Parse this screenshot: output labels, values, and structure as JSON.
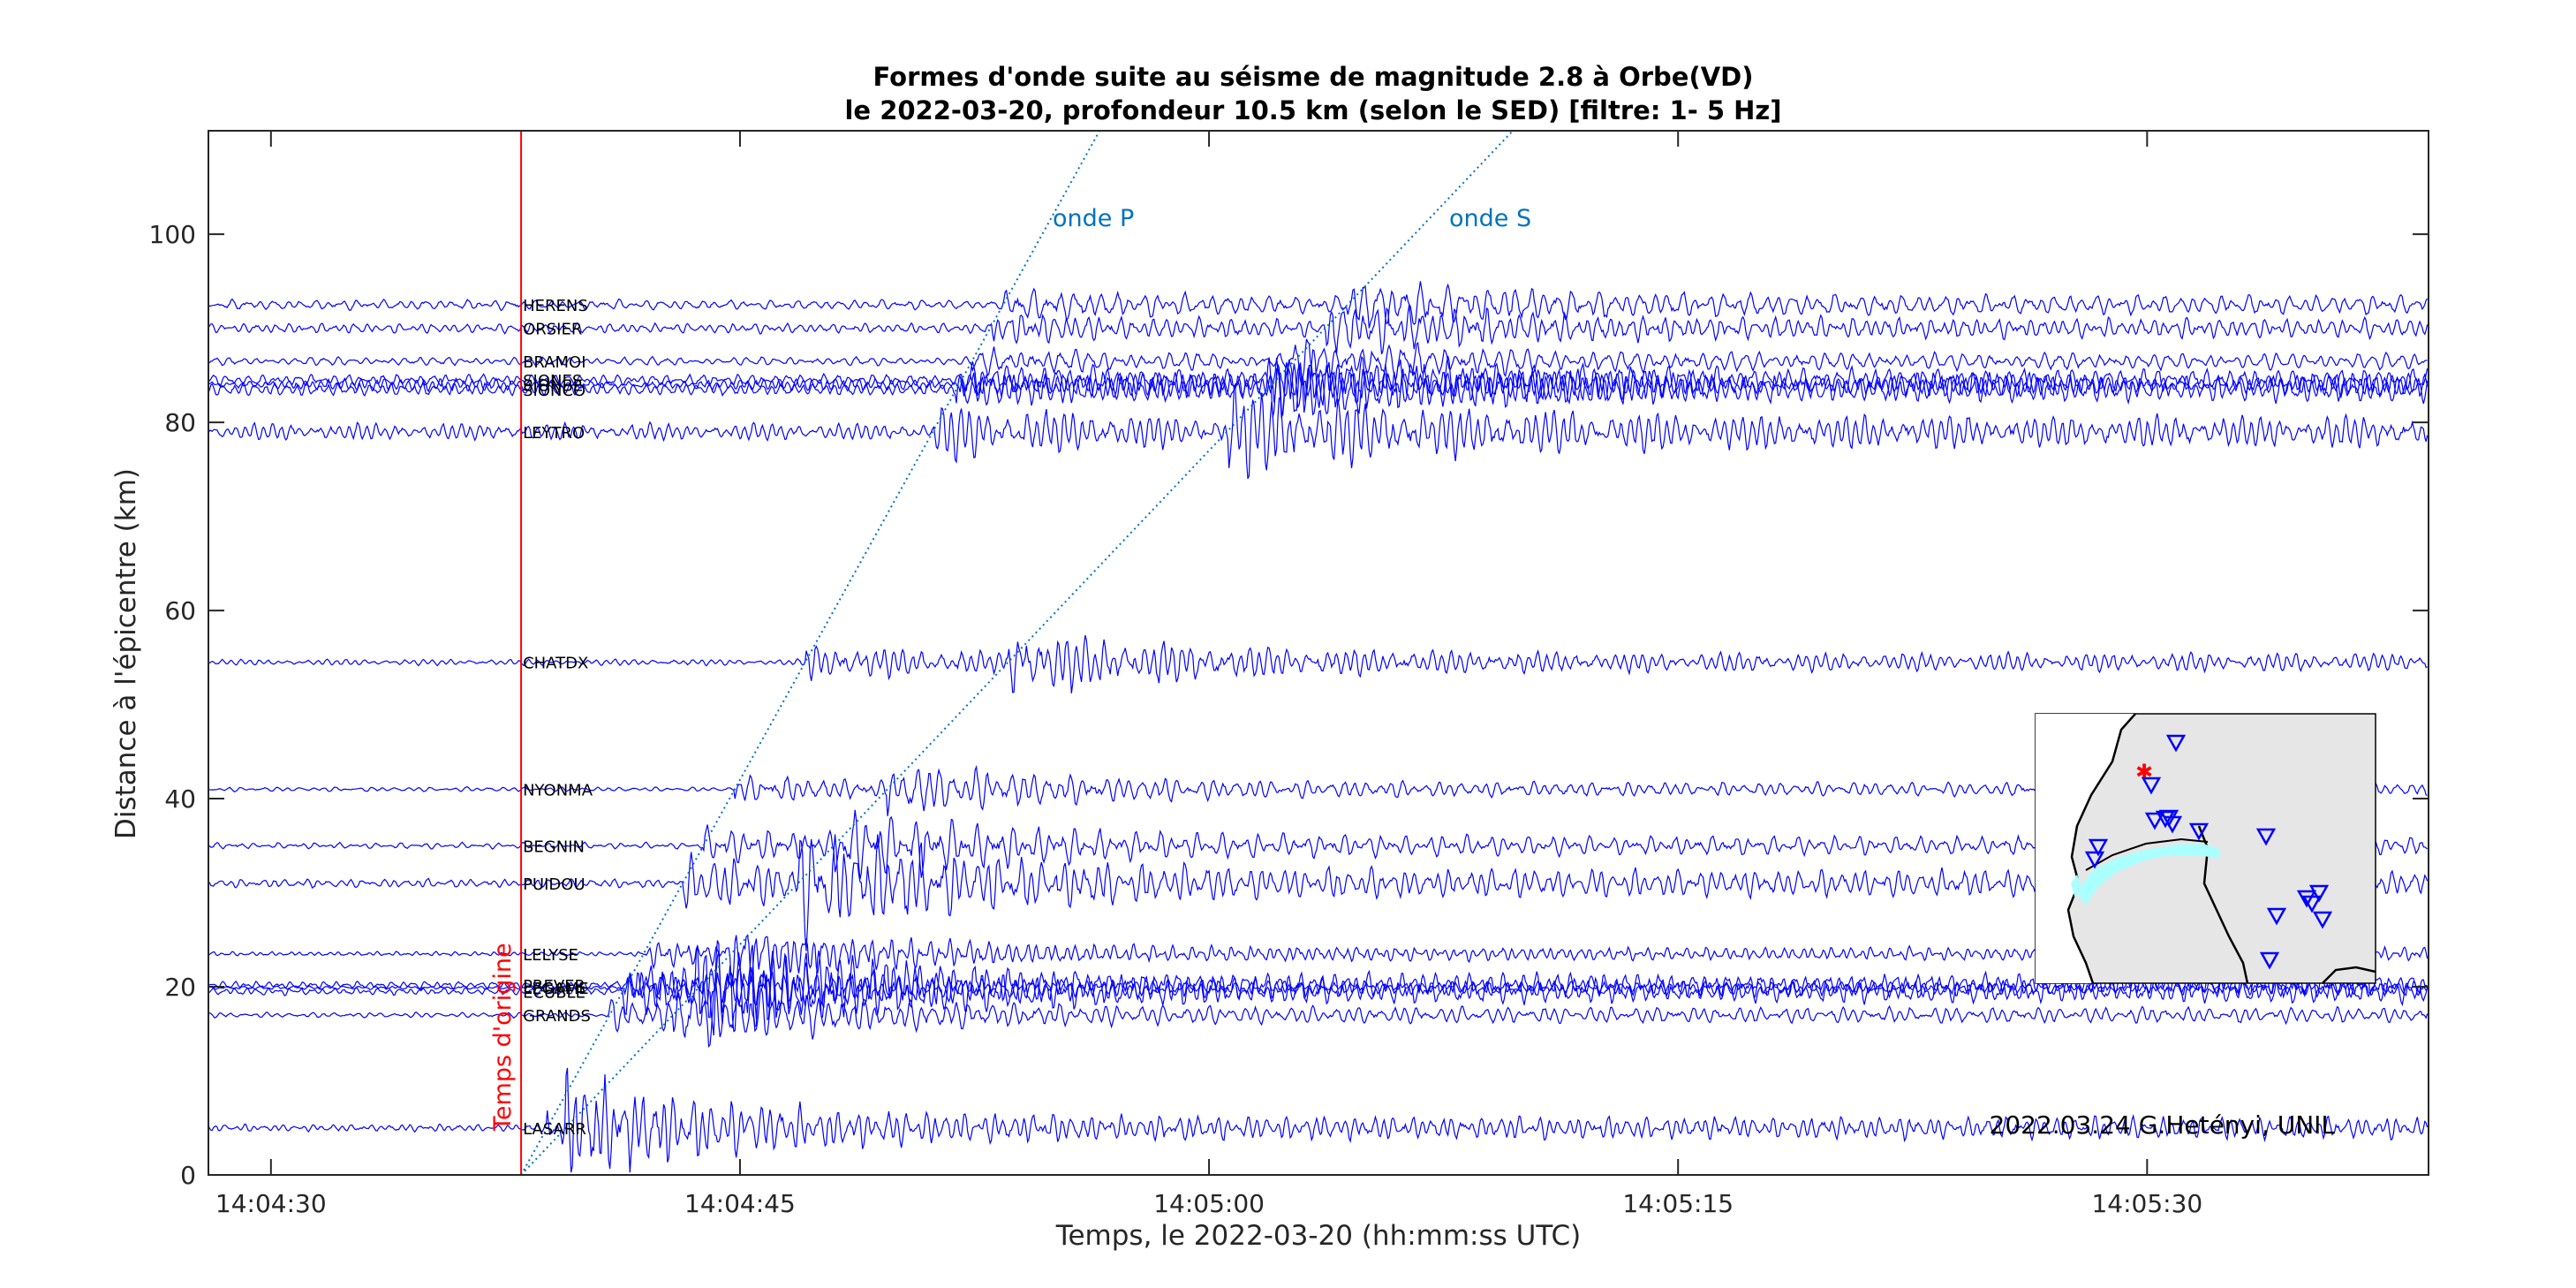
{
  "figure": {
    "title_line1": "Formes d'onde suite au séisme de magnitude 2.8 à Orbe(VD)",
    "title_line2": "le 2022-03-20, profondeur 10.5 km (selon le SED) [filtre: 1- 5 Hz]",
    "credit": "2022.03.24 G.Hetényi, UNIL",
    "origin_label": "Temps d'origine",
    "p_label": "onde P",
    "s_label": "onde S"
  },
  "chart_data": {
    "type": "line",
    "xlabel": "Temps, le 2022-03-20 (hh:mm:ss UTC)",
    "ylabel": "Distance à l'épicentre (km)",
    "xlim_seconds_after_14_04_00": [
      28,
      99
    ],
    "ylim": [
      0,
      111
    ],
    "x_ticks": [
      {
        "label": "14:04:30",
        "t": 30
      },
      {
        "label": "14:04:45",
        "t": 45
      },
      {
        "label": "14:05:00",
        "t": 60
      },
      {
        "label": "14:05:15",
        "t": 75
      },
      {
        "label": "14:05:30",
        "t": 90
      }
    ],
    "y_ticks": [
      0,
      20,
      40,
      60,
      80,
      100
    ],
    "origin_time": "14:04:38",
    "origin_time_seconds": 38,
    "p_velocity_km_s": 6.0,
    "s_velocity_km_s": 3.5,
    "wave_color": "#0000ff",
    "phase_line_color": "#0072BD",
    "origin_color": "#ff0000",
    "stations": [
      {
        "name": "HERENS",
        "distance": 92.5,
        "amp": 3.0
      },
      {
        "name": "ORSIER",
        "distance": 90.0,
        "amp": 3.0
      },
      {
        "name": "BRAMOI",
        "distance": 86.5,
        "amp": 2.5
      },
      {
        "name": "SIONES",
        "distance": 84.5,
        "amp": 3.5
      },
      {
        "name": "SIONBE",
        "distance": 84.0,
        "amp": 3.5
      },
      {
        "name": "SIONCO",
        "distance": 83.5,
        "amp": 4.0
      },
      {
        "name": "LEYTRO",
        "distance": 79.0,
        "amp": 5.0
      },
      {
        "name": "CHATDX",
        "distance": 54.5,
        "amp": 4.0
      },
      {
        "name": "NYONMA",
        "distance": 41.0,
        "amp": 3.0
      },
      {
        "name": "BEGNIN",
        "distance": 35.0,
        "amp": 4.0
      },
      {
        "name": "PUIDOU",
        "distance": 31.0,
        "amp": 6.0
      },
      {
        "name": "LELYSE",
        "distance": 23.5,
        "amp": 3.0
      },
      {
        "name": "PREVER",
        "distance": 20.2,
        "amp": 5.0
      },
      {
        "name": "LEGAME",
        "distance": 19.9,
        "amp": 4.5
      },
      {
        "name": "ECUBLE",
        "distance": 19.5,
        "amp": 5.0
      },
      {
        "name": "GRANDS",
        "distance": 17.0,
        "amp": 3.5
      },
      {
        "name": "LASARR",
        "distance": 5.0,
        "amp": 5.0
      }
    ]
  },
  "inset_map": {
    "background": "#e6e6e6",
    "lake_color": "#aaffff",
    "station_marker_color": "#0000ff",
    "epicenter_color": "#ff0000"
  }
}
